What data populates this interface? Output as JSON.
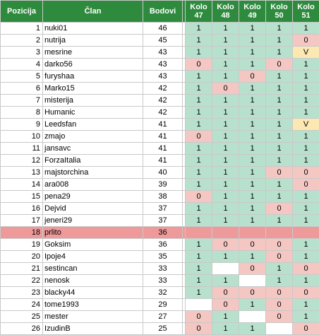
{
  "headers": {
    "pos": "Pozicija",
    "name": "Član",
    "pts": "Bodovi",
    "kolo_word": "Kolo",
    "kolo_numbers": [
      "47",
      "48",
      "49",
      "50",
      "51"
    ]
  },
  "colors": {
    "header": "#2e8b3e",
    "one": "#b7e1cd",
    "zero": "#f4c7c3",
    "v": "#fce8b2",
    "highlight": "#ef9a9a"
  },
  "rows": [
    {
      "pos": "1",
      "name": "nuki01",
      "pts": "46",
      "k": [
        "1",
        "1",
        "1",
        "1",
        "1"
      ]
    },
    {
      "pos": "2",
      "name": "nutrija",
      "pts": "45",
      "k": [
        "1",
        "1",
        "1",
        "1",
        "0"
      ]
    },
    {
      "pos": "3",
      "name": "mesrine",
      "pts": "43",
      "k": [
        "1",
        "1",
        "1",
        "1",
        "V"
      ]
    },
    {
      "pos": "4",
      "name": "darko56",
      "pts": "43",
      "k": [
        "0",
        "1",
        "1",
        "0",
        "1"
      ]
    },
    {
      "pos": "5",
      "name": "furyshaa",
      "pts": "43",
      "k": [
        "1",
        "1",
        "0",
        "1",
        "1"
      ]
    },
    {
      "pos": "6",
      "name": "Marko15",
      "pts": "42",
      "k": [
        "1",
        "0",
        "1",
        "1",
        "1"
      ]
    },
    {
      "pos": "7",
      "name": "misterija",
      "pts": "42",
      "k": [
        "1",
        "1",
        "1",
        "1",
        "1"
      ]
    },
    {
      "pos": "8",
      "name": "Humanic",
      "pts": "42",
      "k": [
        "1",
        "1",
        "1",
        "1",
        "1"
      ]
    },
    {
      "pos": "9",
      "name": "Leedsfan",
      "pts": "41",
      "k": [
        "1",
        "1",
        "1",
        "1",
        "V"
      ]
    },
    {
      "pos": "10",
      "name": "zmajo",
      "pts": "41",
      "k": [
        "0",
        "1",
        "1",
        "1",
        "1"
      ]
    },
    {
      "pos": "11",
      "name": "jansavc",
      "pts": "41",
      "k": [
        "1",
        "1",
        "1",
        "1",
        "1"
      ]
    },
    {
      "pos": "12",
      "name": "ForzaItalia",
      "pts": "41",
      "k": [
        "1",
        "1",
        "1",
        "1",
        "1"
      ]
    },
    {
      "pos": "13",
      "name": "majstorchina",
      "pts": "40",
      "k": [
        "1",
        "1",
        "1",
        "0",
        "0"
      ]
    },
    {
      "pos": "14",
      "name": "ara008",
      "pts": "39",
      "k": [
        "1",
        "1",
        "1",
        "1",
        "0"
      ]
    },
    {
      "pos": "15",
      "name": "pena29",
      "pts": "38",
      "k": [
        "0",
        "1",
        "1",
        "1",
        "1"
      ]
    },
    {
      "pos": "16",
      "name": "Dejvid",
      "pts": "37",
      "k": [
        "1",
        "1",
        "1",
        "0",
        "1"
      ]
    },
    {
      "pos": "17",
      "name": "jeneri29",
      "pts": "37",
      "k": [
        "1",
        "1",
        "1",
        "1",
        "1"
      ]
    },
    {
      "pos": "18",
      "name": "prlito",
      "pts": "36",
      "k": [
        "",
        "",
        "",
        "",
        ""
      ],
      "highlight": true
    },
    {
      "pos": "19",
      "name": "Goksim",
      "pts": "36",
      "k": [
        "1",
        "0",
        "0",
        "0",
        "1"
      ]
    },
    {
      "pos": "20",
      "name": "Ipoje4",
      "pts": "35",
      "k": [
        "1",
        "1",
        "1",
        "0",
        "1"
      ]
    },
    {
      "pos": "21",
      "name": "sestincan",
      "pts": "33",
      "k": [
        "1",
        "",
        "0",
        "1",
        "0"
      ]
    },
    {
      "pos": "22",
      "name": "nenosk",
      "pts": "33",
      "k": [
        "1",
        "1",
        "",
        "1",
        "1"
      ]
    },
    {
      "pos": "23",
      "name": "blacky44",
      "pts": "32",
      "k": [
        "1",
        "0",
        "0",
        "0",
        "0"
      ]
    },
    {
      "pos": "24",
      "name": "tome1993",
      "pts": "29",
      "k": [
        "",
        "0",
        "1",
        "0",
        "1"
      ]
    },
    {
      "pos": "25",
      "name": "mester",
      "pts": "27",
      "k": [
        "0",
        "1",
        "",
        "0",
        "1"
      ]
    },
    {
      "pos": "26",
      "name": "IzudinB",
      "pts": "25",
      "k": [
        "0",
        "1",
        "1",
        "",
        "0"
      ]
    }
  ]
}
